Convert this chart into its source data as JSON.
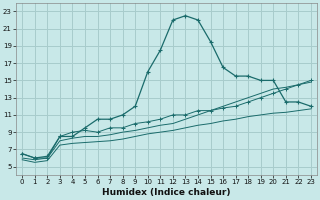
{
  "xlabel": "Humidex (Indice chaleur)",
  "x_values": [
    0,
    1,
    2,
    3,
    4,
    5,
    6,
    7,
    8,
    9,
    10,
    11,
    12,
    13,
    14,
    15,
    16,
    17,
    18,
    19,
    20,
    21,
    22,
    23
  ],
  "line1_y": [
    6.5,
    6.0,
    6.2,
    8.5,
    8.5,
    9.5,
    10.5,
    10.5,
    11.0,
    12.0,
    16.0,
    18.5,
    22.0,
    22.5,
    22.0,
    19.5,
    16.5,
    15.5,
    15.5,
    15.0,
    15.0,
    12.5,
    12.5,
    12.0
  ],
  "line2_y": [
    6.5,
    6.0,
    6.0,
    8.5,
    9.0,
    9.2,
    9.0,
    9.5,
    9.5,
    10.0,
    10.2,
    10.5,
    11.0,
    11.0,
    11.5,
    11.5,
    11.8,
    12.0,
    12.5,
    13.0,
    13.5,
    14.0,
    14.5,
    15.0
  ],
  "line3_y": [
    6.0,
    5.8,
    6.0,
    8.0,
    8.3,
    8.5,
    8.5,
    8.7,
    9.0,
    9.2,
    9.5,
    9.8,
    10.0,
    10.5,
    11.0,
    11.5,
    12.0,
    12.5,
    13.0,
    13.5,
    14.0,
    14.2,
    14.5,
    14.8
  ],
  "line4_y": [
    5.8,
    5.5,
    5.7,
    7.5,
    7.7,
    7.8,
    7.9,
    8.0,
    8.2,
    8.5,
    8.8,
    9.0,
    9.2,
    9.5,
    9.8,
    10.0,
    10.3,
    10.5,
    10.8,
    11.0,
    11.2,
    11.3,
    11.5,
    11.7
  ],
  "bg_color": "#c8e8e8",
  "grid_color": "#a8cccc",
  "line_color": "#1a6b6b",
  "ylim": [
    4,
    24
  ],
  "xlim": [
    -0.5,
    23.5
  ],
  "yticks": [
    5,
    7,
    9,
    11,
    13,
    15,
    17,
    19,
    21,
    23
  ],
  "xticks": [
    0,
    1,
    2,
    3,
    4,
    5,
    6,
    7,
    8,
    9,
    10,
    11,
    12,
    13,
    14,
    15,
    16,
    17,
    18,
    19,
    20,
    21,
    22,
    23
  ]
}
